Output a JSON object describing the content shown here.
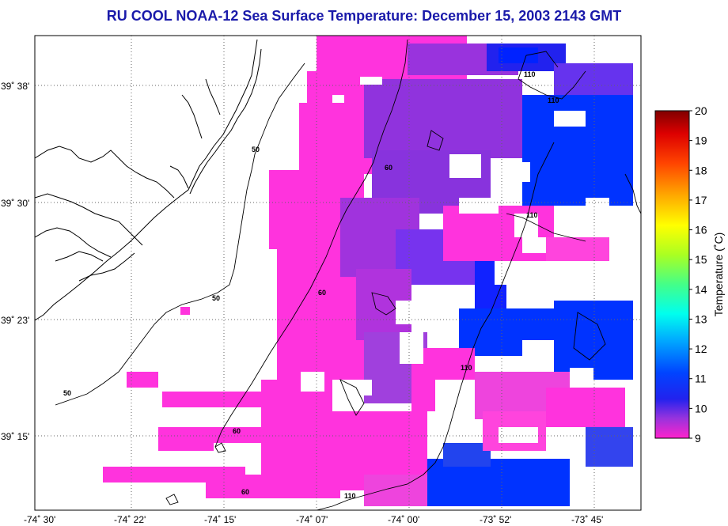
{
  "title": "RU COOL  NOAA-12  Sea Surface Temperature:  December 15, 2003 2143 GMT",
  "map": {
    "lat_labels": [
      "39˚ 38'",
      "39˚ 30'",
      "39˚ 23'",
      "39˚ 15'"
    ],
    "lon_labels": [
      "-74˚ 30'",
      "-74˚ 22'",
      "-74˚ 15'",
      "-74˚ 07'",
      "-74˚ 00'",
      "-73˚ 52'",
      "-73˚ 45'"
    ],
    "contour_labels": [
      "50",
      "50",
      "50",
      "60",
      "60",
      "60",
      "60",
      "110",
      "110",
      "110",
      "110",
      "110"
    ]
  },
  "colorbar": {
    "title": "Temperature (˚C)",
    "ticks": [
      "20",
      "19",
      "18",
      "17",
      "16",
      "15",
      "14",
      "13",
      "12",
      "11",
      "10",
      "9"
    ],
    "colors": [
      "#ff22cc",
      "#3333ee",
      "#0022ff",
      "#00aaff",
      "#00ffff",
      "#44ff88",
      "#aaff22",
      "#ffff00",
      "#ffaa00",
      "#ff4400",
      "#dd0000",
      "#800000"
    ]
  }
}
